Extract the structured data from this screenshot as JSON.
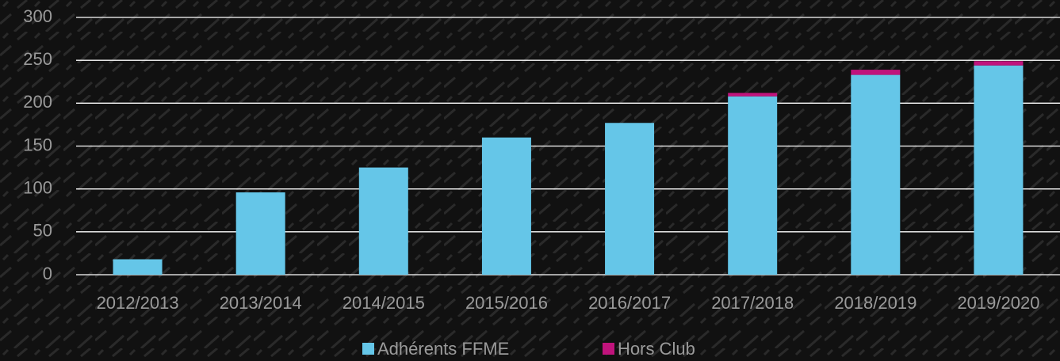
{
  "chart_data": {
    "type": "stacked_bar",
    "categories": [
      "2012/2013",
      "2013/2014",
      "2014/2015",
      "2015/2016",
      "2016/2017",
      "2017/2018",
      "2018/2019",
      "2019/2020"
    ],
    "series": [
      {
        "name": "Adhérents FFME",
        "color": "#65c6e8",
        "values": [
          18,
          96,
          125,
          160,
          177,
          208,
          233,
          244
        ]
      },
      {
        "name": "Hors Club",
        "color": "#c0137c",
        "values": [
          0,
          0,
          0,
          0,
          0,
          4,
          6,
          5
        ]
      }
    ],
    "ylim": [
      0,
      300
    ],
    "yticks": [
      0,
      50,
      100,
      150,
      200,
      250,
      300
    ],
    "grid": true,
    "legend": "bottom"
  }
}
